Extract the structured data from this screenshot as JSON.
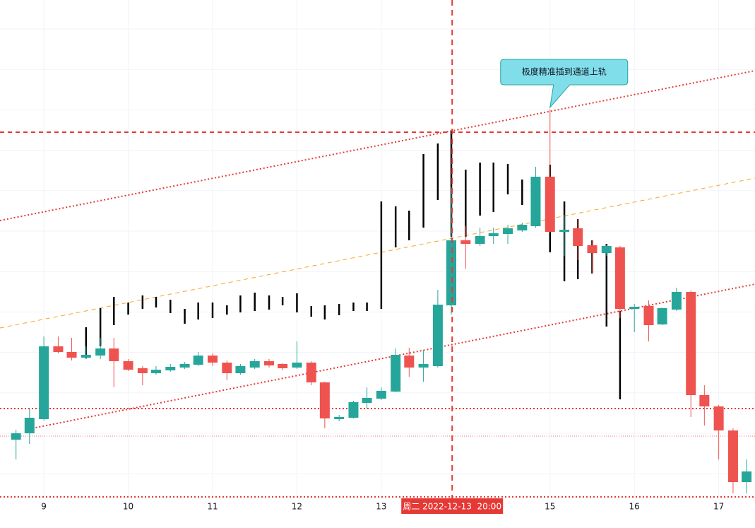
{
  "chart_data": {
    "type": "candlestick",
    "xlim": [
      8.48,
      17.43
    ],
    "ylim": [
      0,
      705
    ],
    "xticks": [
      9,
      10,
      11,
      12,
      13,
      15,
      16,
      17
    ],
    "up_color": "#26a69a",
    "down_color": "#ef5350",
    "candles": {
      "x": [
        8.67,
        8.83,
        9,
        9.17,
        9.33,
        9.5,
        9.67,
        9.83,
        10,
        10.17,
        10.33,
        10.5,
        10.67,
        10.83,
        11,
        11.17,
        11.33,
        11.5,
        11.67,
        11.83,
        12,
        12.17,
        12.33,
        12.5,
        12.67,
        12.83,
        13,
        13.17,
        13.33,
        13.5,
        13.67,
        13.83,
        14,
        14.17,
        14.33,
        14.5,
        14.67,
        14.83,
        15,
        15.17,
        15.33,
        15.5,
        15.67,
        15.83,
        16,
        16.17,
        16.33,
        16.5,
        16.67,
        16.83,
        17,
        17.17,
        17.33
      ],
      "open": [
        83,
        92,
        112,
        215,
        207,
        199,
        202,
        212,
        194,
        184,
        177,
        181,
        185,
        189,
        202,
        192,
        177,
        185,
        194,
        190,
        185,
        192,
        164,
        112,
        114,
        135,
        141,
        151,
        202,
        185,
        187,
        273,
        365,
        360,
        371,
        374,
        379,
        385,
        455,
        377,
        382,
        358,
        347,
        355,
        268,
        272,
        246,
        267,
        292,
        146,
        130,
        96,
        23
      ],
      "high": [
        97,
        127,
        229,
        229,
        227,
        215,
        227,
        227,
        197,
        187,
        187,
        190,
        193,
        207,
        205,
        195,
        190,
        197,
        197,
        191,
        222,
        194,
        165,
        118,
        138,
        157,
        157,
        212,
        213,
        210,
        295,
        440,
        385,
        383,
        383,
        387,
        390,
        469,
        550,
        401,
        395,
        365,
        359,
        357,
        275,
        280,
        270,
        298,
        294,
        160,
        132,
        99,
        55
      ],
      "low": [
        55,
        77,
        110,
        205,
        195,
        197,
        197,
        157,
        180,
        160,
        175,
        179,
        183,
        187,
        187,
        167,
        175,
        183,
        185,
        181,
        183,
        160,
        99,
        109,
        113,
        127,
        139,
        150,
        172,
        165,
        185,
        260,
        325,
        357,
        360,
        360,
        377,
        383,
        376,
        343,
        337,
        318,
        343,
        255,
        235,
        222,
        245,
        265,
        115,
        103,
        55,
        7,
        7
      ],
      "close": [
        92,
        114,
        215,
        207,
        199,
        203,
        212,
        194,
        182,
        177,
        182,
        186,
        190,
        202,
        192,
        177,
        187,
        194,
        188,
        184,
        192,
        164,
        113,
        115,
        136,
        142,
        152,
        203,
        185,
        190,
        274,
        365,
        360,
        371,
        375,
        382,
        387,
        455,
        377,
        380,
        357,
        347,
        357,
        268,
        271,
        245,
        269,
        292,
        146,
        130,
        96,
        23,
        38
      ]
    },
    "bars": {
      "color": "#000000",
      "x": [
        9.5,
        9.67,
        9.83,
        10,
        10.17,
        10.33,
        10.5,
        10.67,
        10.83,
        11,
        11.17,
        11.33,
        11.5,
        11.67,
        11.83,
        12,
        12.17,
        12.33,
        12.5,
        12.67,
        12.83,
        13,
        13.17,
        13.33,
        13.5,
        13.67,
        13.83,
        14,
        14.17,
        14.33,
        14.5,
        14.67,
        15,
        15.17,
        15.33,
        15.5,
        15.67,
        15.83
      ],
      "high": [
        242,
        269,
        285,
        277,
        287,
        285,
        281,
        268,
        277,
        277,
        273,
        287,
        291,
        287,
        285,
        290,
        272,
        273,
        275,
        277,
        277,
        420,
        413,
        407,
        487,
        502,
        520,
        465,
        475,
        475,
        473,
        451,
        472,
        420,
        395,
        365,
        360,
        265
      ],
      "low": [
        198,
        215,
        245,
        260,
        268,
        270,
        262,
        247,
        253,
        255,
        260,
        263,
        265,
        267,
        273,
        263,
        257,
        253,
        259,
        265,
        265,
        268,
        355,
        365,
        383,
        422,
        370,
        370,
        400,
        405,
        430,
        415,
        348,
        307,
        310,
        318,
        243,
        140
      ]
    },
    "lines": [
      {
        "color": "#e53935",
        "style": "dotted",
        "points": [
          [
            8.48,
            393
          ],
          [
            17.43,
            605
          ]
        ]
      },
      {
        "color": "#f5a623",
        "style": "dashed",
        "points": [
          [
            8.48,
            241
          ],
          [
            17.43,
            453
          ]
        ]
      },
      {
        "color": "#e53935",
        "style": "dotted",
        "points": [
          [
            8.82,
            98
          ],
          [
            17.43,
            303
          ]
        ]
      }
    ],
    "hlines": [
      {
        "value": 518,
        "color": "#e53935",
        "style": "dashed"
      },
      {
        "value": 127,
        "color": "#e53935",
        "style": "dotted"
      },
      {
        "value": 88,
        "color": "#e57373",
        "style": "fine"
      },
      {
        "value": 2,
        "color": "#e53935",
        "style": "dotted"
      }
    ],
    "crosshair": {
      "x": 13.84,
      "color": "#e53935",
      "label": "周二 2022-12-13  20:00"
    },
    "annotation": {
      "text": "极度精准插到通道上轨",
      "x": 15,
      "y": 553
    }
  }
}
